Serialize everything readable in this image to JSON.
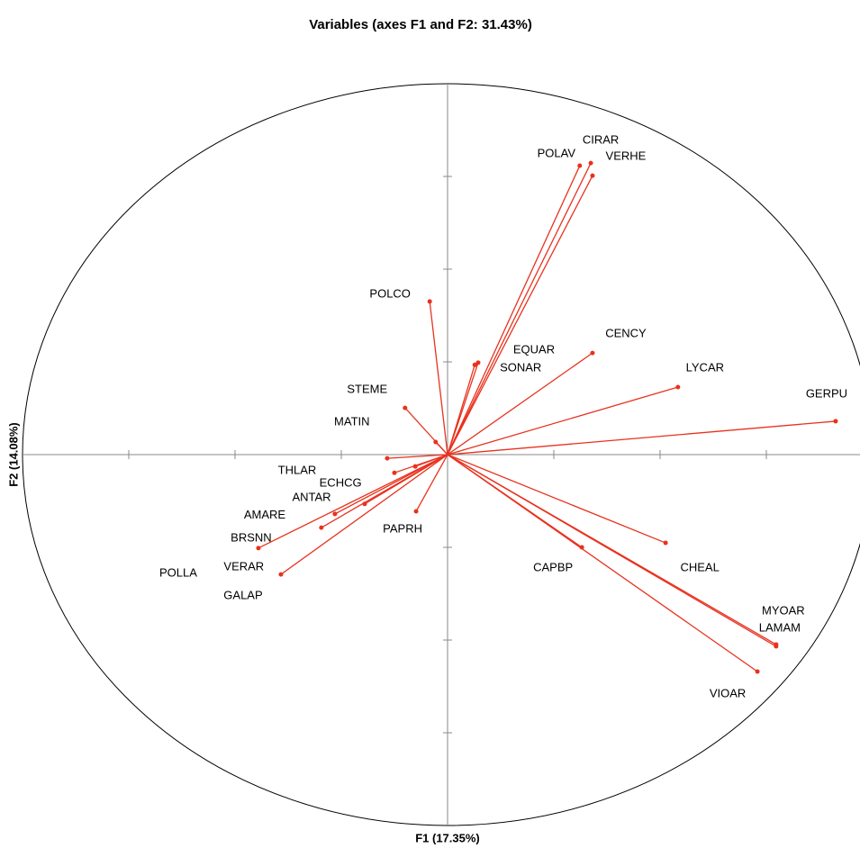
{
  "chart_data": {
    "type": "vectors",
    "title": "Variables (axes F1 and F2: 31.43%)",
    "x_label": "F1 (17.35%)",
    "y_label": "F2 (14.08%)",
    "color": "#e8321e",
    "xlim": [
      -1,
      1
    ],
    "ylim": [
      -1,
      1
    ],
    "xticks": [
      -0.75,
      -0.5,
      -0.25,
      0,
      0.25,
      0.5,
      0.75
    ],
    "yticks": [
      -0.75,
      -0.5,
      -0.25,
      0,
      0.25,
      0.5,
      0.75
    ],
    "series": [
      {
        "name": null,
        "color": "#e8321e",
        "labels": [
          "GERPU",
          "LYCAR",
          "CENCY",
          "CIRAR",
          "POLAV",
          "VERHE",
          "EQUAR",
          "SONAR",
          "POLCO",
          "STEME",
          "MATIN",
          "THLAR",
          "ECHCG",
          "ANTAR",
          "AMARE",
          "BRSNN",
          "POLLA",
          "VERAR",
          "GALAP",
          "PAPRH",
          "CAPBP",
          "CHEAL",
          "MYOAR",
          "LAMAM",
          "VIOAR"
        ],
        "x": [
          0.913,
          0.542,
          0.341,
          0.337,
          0.311,
          0.341,
          0.072,
          0.064,
          -0.042,
          -0.1,
          -0.028,
          -0.142,
          -0.076,
          -0.125,
          -0.195,
          -0.265,
          -0.445,
          -0.297,
          -0.392,
          -0.074,
          0.316,
          0.513,
          0.773,
          0.773,
          0.729
        ],
        "values": [
          0.09,
          0.182,
          0.274,
          0.786,
          0.779,
          0.752,
          0.248,
          0.242,
          0.413,
          0.126,
          0.034,
          -0.01,
          -0.032,
          -0.049,
          -0.133,
          -0.16,
          -0.252,
          -0.197,
          -0.323,
          -0.153,
          -0.25,
          -0.238,
          -0.512,
          -0.517,
          -0.585
        ]
      }
    ]
  }
}
